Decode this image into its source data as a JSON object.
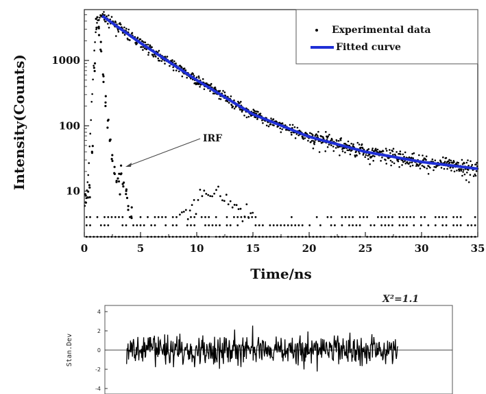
{
  "chart_data": [
    {
      "type": "scatter",
      "xlabel": "Time/ns",
      "ylabel": "Intensity(Counts)",
      "xlim": [
        0,
        35
      ],
      "ylim": [
        2,
        6000
      ],
      "yscale": "log",
      "x_ticks": [
        0,
        5,
        10,
        15,
        20,
        25,
        30,
        35
      ],
      "x_tick_labels": [
        "0",
        "5",
        "10",
        "15",
        "20",
        "25",
        "30",
        "35"
      ],
      "y_ticks": [
        10,
        100,
        1000
      ],
      "y_tick_labels": [
        "10",
        "100",
        "1000"
      ],
      "grid": false,
      "legend_position": "top-right",
      "annotation": "IRF",
      "series": [
        {
          "name": "Experimental data",
          "marker": "dot",
          "color": "#000000",
          "decay": {
            "t0": 1.6,
            "peak": 4800,
            "tau": 3.6,
            "floor": 5
          },
          "irf": {
            "t_peak": 1.2,
            "peak": 4000,
            "points": [
              [
                0.1,
                8
              ],
              [
                0.3,
                9
              ],
              [
                0.5,
                12
              ],
              [
                0.7,
                40
              ],
              [
                0.9,
                900
              ],
              [
                1.1,
                3500
              ],
              [
                1.3,
                2800
              ],
              [
                1.5,
                1400
              ],
              [
                1.7,
                600
              ],
              [
                1.9,
                260
              ],
              [
                2.1,
                110
              ],
              [
                2.3,
                55
              ],
              [
                2.5,
                32
              ],
              [
                2.7,
                20
              ],
              [
                2.9,
                15
              ],
              [
                3.1,
                17
              ],
              [
                3.3,
                22
              ],
              [
                3.5,
                14
              ],
              [
                3.7,
                9
              ],
              [
                3.9,
                6
              ],
              [
                4.2,
                4
              ]
            ]
          },
          "background_levels": [
            2,
            3,
            4
          ]
        },
        {
          "name": "Fitted curve",
          "line": "solid",
          "color": "#1f2fd6",
          "x": [
            1.6,
            5,
            10,
            15,
            20,
            25,
            30,
            35
          ],
          "y": [
            4800,
            1850,
            500,
            150,
            68,
            40,
            28,
            22
          ]
        }
      ]
    },
    {
      "type": "line",
      "ylabel": "Stan.Dev",
      "chi_label": "X²=1.1",
      "ylim": [
        -4,
        4
      ],
      "y_ticks": [
        -4,
        -2,
        0,
        2,
        4
      ],
      "y_tick_labels": [
        "-4",
        "-2",
        "0",
        "2",
        "4"
      ],
      "x_start": 5,
      "x_end": 30,
      "zero_line": true,
      "color": "#000000"
    }
  ]
}
